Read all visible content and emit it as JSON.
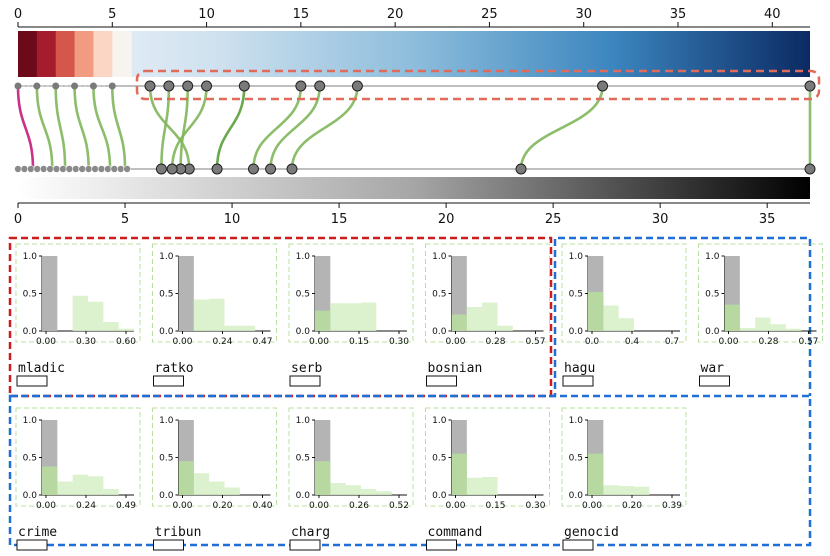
{
  "top_scale": {
    "ticks": [
      "0",
      "5",
      "10",
      "15",
      "20",
      "25",
      "30",
      "35",
      "40"
    ],
    "max": 42,
    "diverging_at": 5
  },
  "bottom_scale": {
    "ticks": [
      "0",
      "5",
      "10",
      "15",
      "20",
      "25",
      "30",
      "35"
    ],
    "max": 37
  },
  "links": [
    {
      "top": 0.0,
      "bottom": 0.7,
      "color": "#c51b7d"
    },
    {
      "top": 1.0,
      "bottom": 1.6,
      "color": "#7fb65a"
    },
    {
      "top": 2.0,
      "bottom": 2.2,
      "color": "#7fb65a"
    },
    {
      "top": 3.0,
      "bottom": 3.3,
      "color": "#7fb65a"
    },
    {
      "top": 4.0,
      "bottom": 4.3,
      "color": "#7fb65a"
    },
    {
      "top": 5.0,
      "bottom": 5.0,
      "color": "#7fb65a"
    },
    {
      "top": 7.0,
      "bottom": 8.0,
      "color": "#7fb65a"
    },
    {
      "top": 8.0,
      "bottom": 6.7,
      "color": "#7fb65a"
    },
    {
      "top": 9.0,
      "bottom": 7.6,
      "color": "#7fb65a"
    },
    {
      "top": 10.0,
      "bottom": 7.2,
      "color": "#7fb65a"
    },
    {
      "top": 12.0,
      "bottom": 9.3,
      "color": "#5a9e3a"
    },
    {
      "top": 15.0,
      "bottom": 11.0,
      "color": "#7fb65a"
    },
    {
      "top": 16.0,
      "bottom": 11.8,
      "color": "#7fb65a"
    },
    {
      "top": 18.0,
      "bottom": 12.8,
      "color": "#7fb65a"
    },
    {
      "top": 31.0,
      "bottom": 23.5,
      "color": "#7fb65a"
    },
    {
      "top": 42.0,
      "bottom": 37.0,
      "color": "#7fb65a"
    }
  ],
  "top_gray_nodes": [
    0,
    1,
    2,
    3,
    4,
    5
  ],
  "bottom_small_nodes": [
    0,
    0.3,
    0.6,
    0.9,
    1.2,
    1.5,
    1.8,
    2.1,
    2.4,
    2.7,
    3.0,
    3.3,
    3.6,
    3.9,
    4.2,
    4.5,
    4.8,
    5.1
  ],
  "histograms": [
    {
      "word": "mladic",
      "ticks": [
        "0.00",
        "0.30",
        "0.60"
      ],
      "gray": [
        1.0
      ],
      "green": [
        0,
        0,
        0.47,
        0.39,
        0.12,
        0.03
      ]
    },
    {
      "word": "ratko",
      "ticks": [
        "0.00",
        "0.24",
        "0.47"
      ],
      "gray": [
        1.0
      ],
      "green": [
        0,
        0.42,
        0.43,
        0.07,
        0.07
      ]
    },
    {
      "word": "serb",
      "ticks": [
        "0.00",
        "0.15",
        "0.30"
      ],
      "gray": [
        1.0
      ],
      "green": [
        0.27,
        0.37,
        0.37,
        0.38,
        0
      ]
    },
    {
      "word": "bosnian",
      "ticks": [
        "0.00",
        "0.28",
        "0.57"
      ],
      "gray": [
        1.0
      ],
      "green": [
        0.22,
        0.32,
        0.38,
        0.07,
        0
      ]
    },
    {
      "word": "hagu",
      "ticks": [
        "0.0",
        "0.4",
        "0.7"
      ],
      "gray": [
        1.0
      ],
      "green": [
        0.52,
        0.34,
        0.17,
        0,
        0
      ]
    },
    {
      "word": "war",
      "ticks": [
        "0.00",
        "0.28",
        "0.57"
      ],
      "gray": [
        1.0
      ],
      "green": [
        0.35,
        0.04,
        0.18,
        0.09,
        0.03
      ]
    },
    {
      "word": "crime",
      "ticks": [
        "0.00",
        "0.24",
        "0.49"
      ],
      "gray": [
        1.0
      ],
      "green": [
        0.38,
        0.18,
        0.27,
        0.25,
        0.08
      ]
    },
    {
      "word": "tribun",
      "ticks": [
        "0.00",
        "0.20",
        "0.40"
      ],
      "gray": [
        1.0
      ],
      "green": [
        0.45,
        0.29,
        0.18,
        0.1,
        0
      ]
    },
    {
      "word": "charg",
      "ticks": [
        "0.00",
        "0.26",
        "0.52"
      ],
      "gray": [
        1.0
      ],
      "green": [
        0.45,
        0.16,
        0.13,
        0.08,
        0.05
      ]
    },
    {
      "word": "command",
      "ticks": [
        "0.00",
        "0.15",
        "0.30"
      ],
      "gray": [
        1.0
      ],
      "green": [
        0.55,
        0.23,
        0.24,
        0,
        0
      ]
    },
    {
      "word": "genocid",
      "ticks": [
        "0.00",
        "0.20",
        "0.39"
      ],
      "gray": [
        1.0
      ],
      "green": [
        0.55,
        0.13,
        0.12,
        0.11,
        0
      ]
    }
  ],
  "y_ticks": [
    "0.0",
    "0.5",
    "1.0"
  ],
  "colors": {
    "red_box": "#cc1c1c",
    "blue_box": "#1f6fd6",
    "highlight_box": "#e06b5a",
    "green_fill": "#d6efc4",
    "green_dark": "#a7cf8a",
    "gray_fill": "#b4b4b4",
    "node": "#7a7a7a"
  }
}
